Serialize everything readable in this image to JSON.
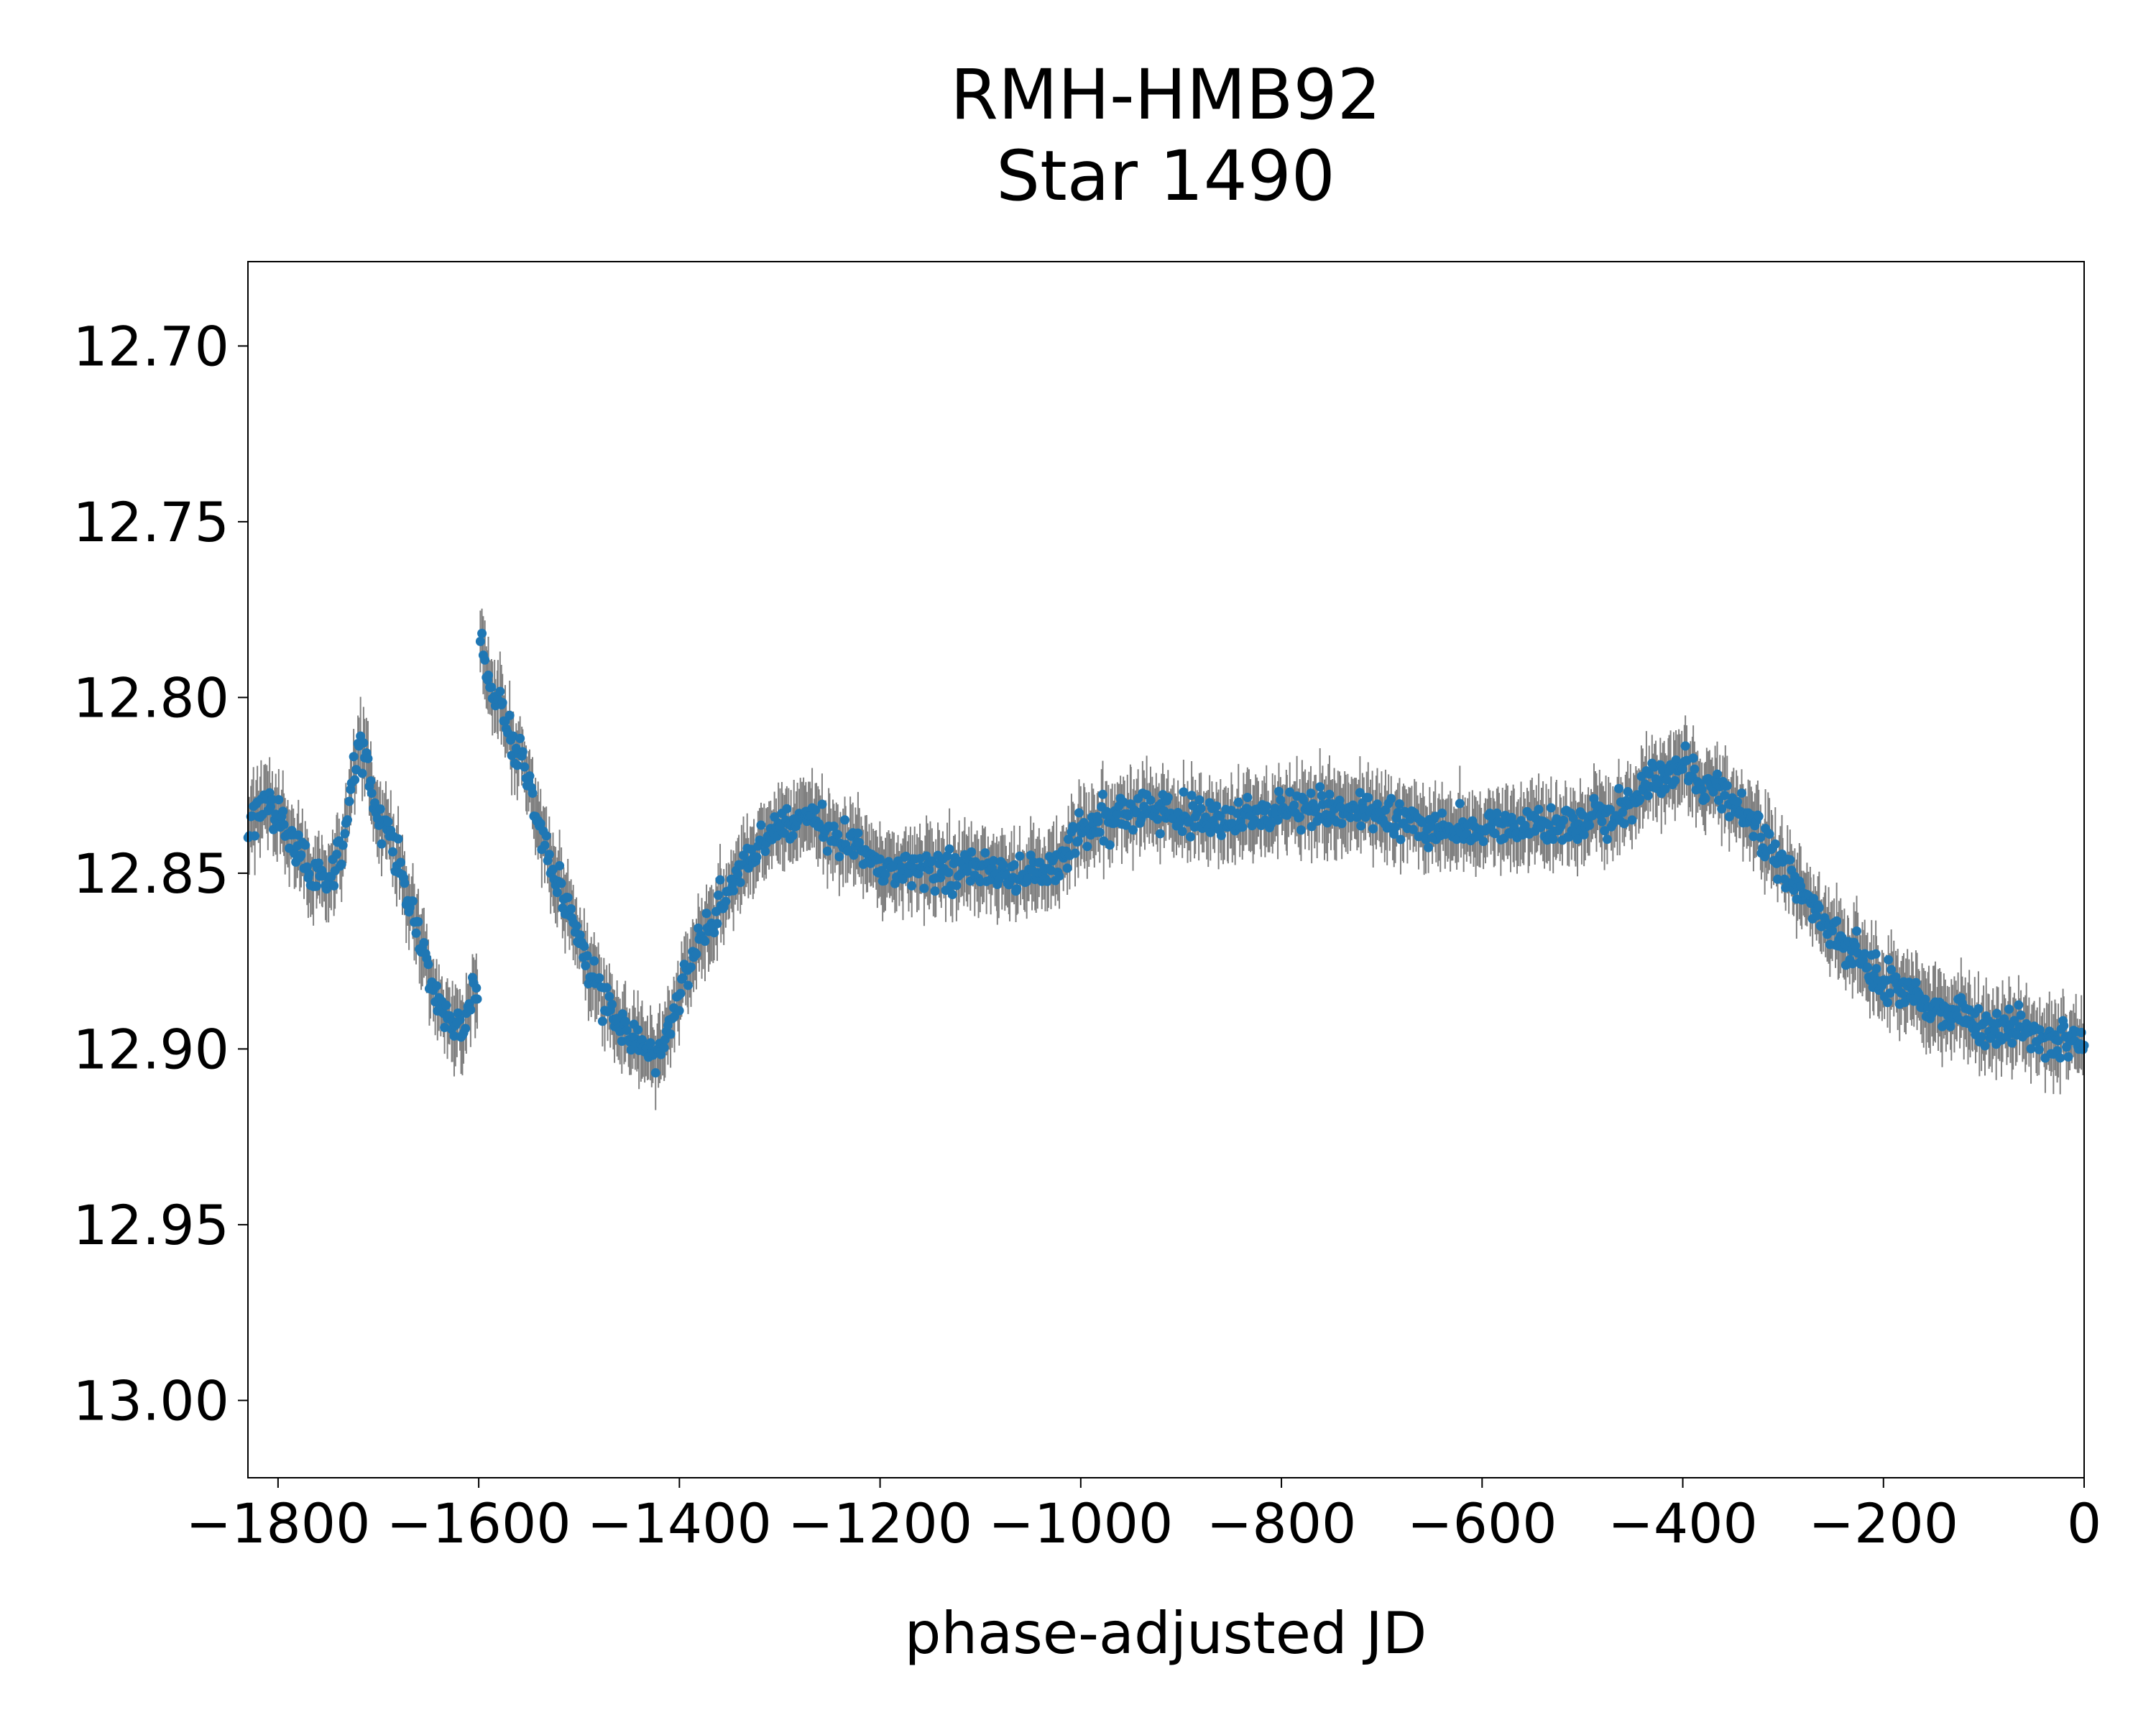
{
  "chart_data": {
    "type": "scatter",
    "title": [
      "RMH-HMB92",
      "Star 1490"
    ],
    "xlabel": "phase-adjusted JD",
    "ylabel": "",
    "xlim": [
      -1830,
      0
    ],
    "ylim": [
      13.022,
      12.676
    ],
    "y_inverted": true,
    "x_ticks": [
      -1800,
      -1600,
      -1400,
      -1200,
      -1000,
      -800,
      -600,
      -400,
      -200,
      0
    ],
    "x_tick_labels": [
      "−1800",
      "−1600",
      "−1400",
      "−1200",
      "−1000",
      "−800",
      "−600",
      "−400",
      "−200",
      "0"
    ],
    "y_ticks": [
      12.7,
      12.75,
      12.8,
      12.85,
      12.9,
      12.95,
      13.0
    ],
    "y_tick_labels": [
      "12.70",
      "12.75",
      "12.80",
      "12.85",
      "12.90",
      "12.95",
      "13.00"
    ],
    "grid": false,
    "legend": "none",
    "colors": {
      "points": "#1f77b4",
      "errorbars": "#808080"
    },
    "series": [
      {
        "error": 0.009,
        "points": [
          [
            -1830,
            12.838
          ],
          [
            -1810,
            12.83
          ],
          [
            -1790,
            12.84
          ],
          [
            -1770,
            12.848
          ],
          [
            -1750,
            12.852
          ],
          [
            -1735,
            12.842
          ],
          [
            -1725,
            12.82
          ],
          [
            -1715,
            12.815
          ],
          [
            -1705,
            12.828
          ],
          [
            -1690,
            12.838
          ],
          [
            -1675,
            12.852
          ],
          [
            -1660,
            12.868
          ],
          [
            -1645,
            12.885
          ],
          [
            -1630,
            12.893
          ],
          [
            -1615,
            12.895
          ],
          [
            -1605,
            12.885
          ],
          [
            -1600,
            12.88
          ],
          [
            -1598,
            12.785
          ],
          [
            -1590,
            12.795
          ],
          [
            -1575,
            12.805
          ],
          [
            -1560,
            12.815
          ],
          [
            -1545,
            12.83
          ],
          [
            -1530,
            12.845
          ],
          [
            -1515,
            12.858
          ],
          [
            -1500,
            12.87
          ],
          [
            -1485,
            12.88
          ],
          [
            -1470,
            12.888
          ],
          [
            -1455,
            12.895
          ],
          [
            -1440,
            12.898
          ],
          [
            -1425,
            12.902
          ],
          [
            -1410,
            12.895
          ],
          [
            -1395,
            12.88
          ],
          [
            -1380,
            12.87
          ],
          [
            -1365,
            12.862
          ],
          [
            -1350,
            12.855
          ],
          [
            -1335,
            12.848
          ],
          [
            -1320,
            12.842
          ],
          [
            -1305,
            12.838
          ],
          [
            -1290,
            12.835
          ],
          [
            -1270,
            12.835
          ],
          [
            -1250,
            12.838
          ],
          [
            -1230,
            12.842
          ],
          [
            -1200,
            12.848
          ],
          [
            -1170,
            12.85
          ],
          [
            -1140,
            12.849
          ],
          [
            -1110,
            12.848
          ],
          [
            -1080,
            12.85
          ],
          [
            -1050,
            12.851
          ],
          [
            -1020,
            12.846
          ],
          [
            -1000,
            12.838
          ],
          [
            -970,
            12.834
          ],
          [
            -940,
            12.832
          ],
          [
            -910,
            12.833
          ],
          [
            -880,
            12.834
          ],
          [
            -850,
            12.835
          ],
          [
            -820,
            12.834
          ],
          [
            -790,
            12.832
          ],
          [
            -760,
            12.831
          ],
          [
            -730,
            12.832
          ],
          [
            -700,
            12.834
          ],
          [
            -670,
            12.836
          ],
          [
            -640,
            12.837
          ],
          [
            -610,
            12.838
          ],
          [
            -580,
            12.837
          ],
          [
            -550,
            12.836
          ],
          [
            -520,
            12.836
          ],
          [
            -490,
            12.835
          ],
          [
            -460,
            12.832
          ],
          [
            -440,
            12.826
          ],
          [
            -420,
            12.822
          ],
          [
            -400,
            12.82
          ],
          [
            -380,
            12.824
          ],
          [
            -360,
            12.828
          ],
          [
            -340,
            12.832
          ],
          [
            -320,
            12.84
          ],
          [
            -300,
            12.848
          ],
          [
            -280,
            12.857
          ],
          [
            -260,
            12.863
          ],
          [
            -240,
            12.87
          ],
          [
            -220,
            12.876
          ],
          [
            -200,
            12.88
          ],
          [
            -180,
            12.884
          ],
          [
            -160,
            12.887
          ],
          [
            -140,
            12.89
          ],
          [
            -120,
            12.891
          ],
          [
            -100,
            12.893
          ],
          [
            -80,
            12.895
          ],
          [
            -60,
            12.896
          ],
          [
            -40,
            12.898
          ],
          [
            -20,
            12.898
          ],
          [
            0,
            12.899
          ]
        ]
      }
    ]
  }
}
